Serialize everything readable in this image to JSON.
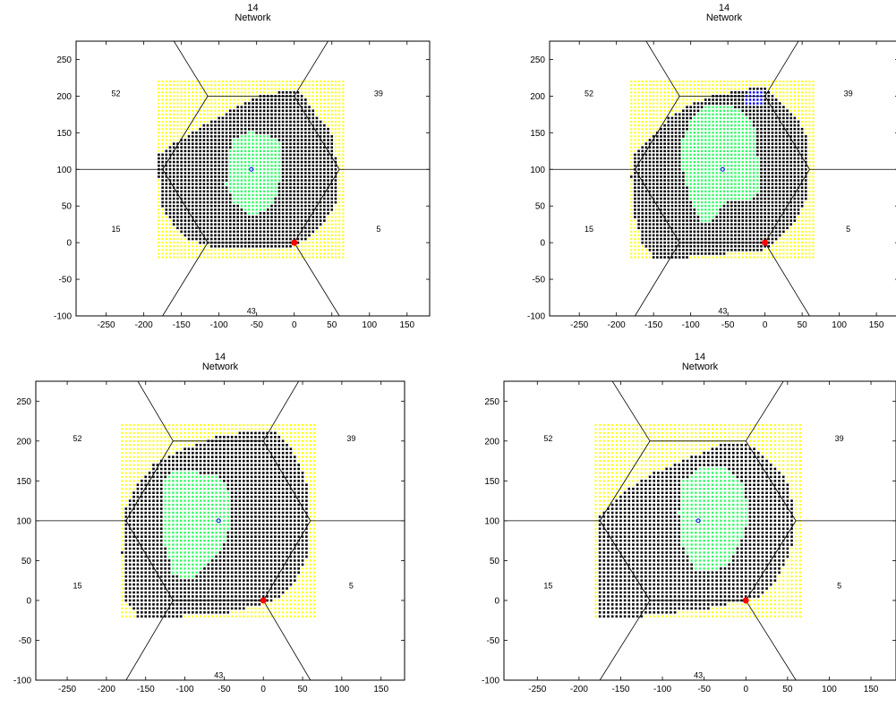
{
  "panels": [
    {
      "title_line1": "14",
      "title_line2": "Network"
    },
    {
      "title_line1": "14",
      "title_line2": "Network"
    },
    {
      "title_line1": "14",
      "title_line2": "Network"
    },
    {
      "title_line1": "14",
      "title_line2": "Network"
    }
  ],
  "colors": {
    "coverage_yellow": "#ffff00",
    "served_black": "#000000",
    "green_region": "#33ff66",
    "blue_region": "#0000ff",
    "red_site": "#ff0000",
    "cell_boundary": "#000000"
  },
  "chart_data": [
    {
      "type": "scatter",
      "title": "14\nNetwork",
      "xlim": [
        -290,
        180
      ],
      "ylim": [
        -100,
        275
      ],
      "xticks": [
        -250,
        -200,
        -150,
        -100,
        -50,
        0,
        50,
        100,
        150
      ],
      "yticks": [
        250,
        200,
        150,
        100,
        50,
        0,
        -50,
        -100
      ],
      "cell_labels": [
        {
          "text": "52",
          "x": -237,
          "y": 200
        },
        {
          "text": "39",
          "x": 112,
          "y": 200
        },
        {
          "text": "15",
          "x": -237,
          "y": 15
        },
        {
          "text": "5",
          "x": 112,
          "y": 15
        },
        {
          "text": "43",
          "x": -57,
          "y": -97
        }
      ],
      "grid_extent": {
        "x": [
          -180,
          65
        ],
        "y": [
          -20,
          220
        ]
      },
      "served_region": [
        [
          -180,
          120
        ],
        [
          -160,
          135
        ],
        [
          -120,
          160
        ],
        [
          -85,
          180
        ],
        [
          -45,
          200
        ],
        [
          -5,
          208
        ],
        [
          10,
          205
        ],
        [
          30,
          175
        ],
        [
          50,
          150
        ],
        [
          55,
          120
        ],
        [
          60,
          95
        ],
        [
          60,
          60
        ],
        [
          45,
          35
        ],
        [
          25,
          10
        ],
        [
          0,
          -5
        ],
        [
          -50,
          -10
        ],
        [
          -110,
          -5
        ],
        [
          -140,
          5
        ],
        [
          -160,
          25
        ],
        [
          -178,
          50
        ],
        [
          -180,
          90
        ]
      ],
      "green_region": [
        [
          -80,
          140
        ],
        [
          -60,
          152
        ],
        [
          -40,
          148
        ],
        [
          -20,
          138
        ],
        [
          -15,
          110
        ],
        [
          -20,
          80
        ],
        [
          -28,
          55
        ],
        [
          -45,
          40
        ],
        [
          -60,
          40
        ],
        [
          -80,
          55
        ],
        [
          -90,
          80
        ],
        [
          -88,
          120
        ]
      ],
      "blue_region": []
    },
    {
      "type": "scatter",
      "title": "14\nNetwork",
      "xlim": [
        -290,
        180
      ],
      "ylim": [
        -100,
        275
      ],
      "xticks": [
        -250,
        -200,
        -150,
        -100,
        -50,
        0,
        50,
        100,
        150
      ],
      "yticks": [
        250,
        200,
        150,
        100,
        50,
        0,
        -50,
        -100
      ],
      "cell_labels": [
        {
          "text": "52",
          "x": -237,
          "y": 200
        },
        {
          "text": "39",
          "x": 112,
          "y": 200
        },
        {
          "text": "15",
          "x": -237,
          "y": 15
        },
        {
          "text": "5",
          "x": 112,
          "y": 15
        },
        {
          "text": "43",
          "x": -57,
          "y": -97
        }
      ],
      "grid_extent": {
        "x": [
          -180,
          65
        ],
        "y": [
          -20,
          220
        ]
      },
      "served_region": [
        [
          -175,
          120
        ],
        [
          -150,
          148
        ],
        [
          -130,
          170
        ],
        [
          -100,
          188
        ],
        [
          -70,
          200
        ],
        [
          -20,
          210
        ],
        [
          0,
          212
        ],
        [
          20,
          195
        ],
        [
          45,
          170
        ],
        [
          60,
          135
        ],
        [
          60,
          90
        ],
        [
          55,
          55
        ],
        [
          40,
          25
        ],
        [
          20,
          5
        ],
        [
          0,
          -10
        ],
        [
          -50,
          -15
        ],
        [
          -100,
          -20
        ],
        [
          -150,
          -20
        ],
        [
          -165,
          0
        ],
        [
          -178,
          40
        ],
        [
          -180,
          90
        ]
      ],
      "green_region": [
        [
          -100,
          165
        ],
        [
          -80,
          185
        ],
        [
          -55,
          190
        ],
        [
          -30,
          180
        ],
        [
          -15,
          160
        ],
        [
          -10,
          120
        ],
        [
          -5,
          70
        ],
        [
          -20,
          55
        ],
        [
          -50,
          60
        ],
        [
          -70,
          30
        ],
        [
          -85,
          30
        ],
        [
          -100,
          60
        ],
        [
          -110,
          100
        ],
        [
          -110,
          140
        ]
      ],
      "blue_region": [
        [
          -30,
          198
        ],
        [
          -20,
          208
        ],
        [
          -5,
          208
        ],
        [
          0,
          198
        ],
        [
          -5,
          188
        ],
        [
          -25,
          188
        ]
      ]
    },
    {
      "type": "scatter",
      "title": "14\nNetwork",
      "xlim": [
        -290,
        180
      ],
      "ylim": [
        -100,
        275
      ],
      "xticks": [
        -250,
        -200,
        -150,
        -100,
        -50,
        0,
        50,
        100,
        150
      ],
      "yticks": [
        250,
        200,
        150,
        100,
        50,
        0,
        -50,
        -100
      ],
      "cell_labels": [
        {
          "text": "52",
          "x": -237,
          "y": 200
        },
        {
          "text": "39",
          "x": 112,
          "y": 200
        },
        {
          "text": "15",
          "x": -237,
          "y": 15
        },
        {
          "text": "5",
          "x": 112,
          "y": 15
        },
        {
          "text": "43",
          "x": -57,
          "y": -97
        }
      ],
      "grid_extent": {
        "x": [
          -180,
          65
        ],
        "y": [
          -20,
          220
        ]
      },
      "served_region": [
        [
          -178,
          110
        ],
        [
          -160,
          145
        ],
        [
          -140,
          170
        ],
        [
          -100,
          190
        ],
        [
          -60,
          205
        ],
        [
          -20,
          212
        ],
        [
          10,
          215
        ],
        [
          30,
          200
        ],
        [
          45,
          175
        ],
        [
          58,
          140
        ],
        [
          60,
          90
        ],
        [
          55,
          50
        ],
        [
          40,
          20
        ],
        [
          15,
          0
        ],
        [
          -40,
          -15
        ],
        [
          -100,
          -20
        ],
        [
          -160,
          -20
        ],
        [
          -178,
          0
        ],
        [
          -180,
          60
        ]
      ],
      "green_region": [
        [
          -125,
          150
        ],
        [
          -110,
          165
        ],
        [
          -80,
          160
        ],
        [
          -55,
          155
        ],
        [
          -40,
          130
        ],
        [
          -40,
          100
        ],
        [
          -50,
          70
        ],
        [
          -75,
          40
        ],
        [
          -95,
          25
        ],
        [
          -115,
          35
        ],
        [
          -125,
          70
        ],
        [
          -128,
          110
        ]
      ],
      "blue_region": []
    },
    {
      "type": "scatter",
      "title": "14\nNetwork",
      "xlim": [
        -290,
        180
      ],
      "ylim": [
        -100,
        275
      ],
      "xticks": [
        -250,
        -200,
        -150,
        -100,
        -50,
        0,
        50,
        100,
        150
      ],
      "yticks": [
        250,
        200,
        150,
        100,
        50,
        0,
        -50,
        -100
      ],
      "cell_labels": [
        {
          "text": "52",
          "x": -237,
          "y": 200
        },
        {
          "text": "39",
          "x": 112,
          "y": 200
        },
        {
          "text": "15",
          "x": -237,
          "y": 15
        },
        {
          "text": "5",
          "x": 112,
          "y": 15
        },
        {
          "text": "43",
          "x": -57,
          "y": -97
        }
      ],
      "grid_extent": {
        "x": [
          -180,
          65
        ],
        "y": [
          -20,
          220
        ]
      },
      "served_region": [
        [
          -178,
          105
        ],
        [
          -160,
          120
        ],
        [
          -140,
          140
        ],
        [
          -110,
          160
        ],
        [
          -70,
          178
        ],
        [
          -30,
          195
        ],
        [
          -5,
          200
        ],
        [
          15,
          190
        ],
        [
          35,
          170
        ],
        [
          50,
          150
        ],
        [
          60,
          110
        ],
        [
          55,
          65
        ],
        [
          40,
          30
        ],
        [
          20,
          5
        ],
        [
          -40,
          -10
        ],
        [
          -120,
          -20
        ],
        [
          -175,
          -20
        ],
        [
          -178,
          30
        ]
      ],
      "green_region": [
        [
          -75,
          150
        ],
        [
          -55,
          165
        ],
        [
          -25,
          170
        ],
        [
          -5,
          150
        ],
        [
          5,
          110
        ],
        [
          -5,
          75
        ],
        [
          -20,
          45
        ],
        [
          -40,
          35
        ],
        [
          -60,
          40
        ],
        [
          -75,
          70
        ],
        [
          -80,
          110
        ]
      ],
      "blue_region": []
    }
  ]
}
